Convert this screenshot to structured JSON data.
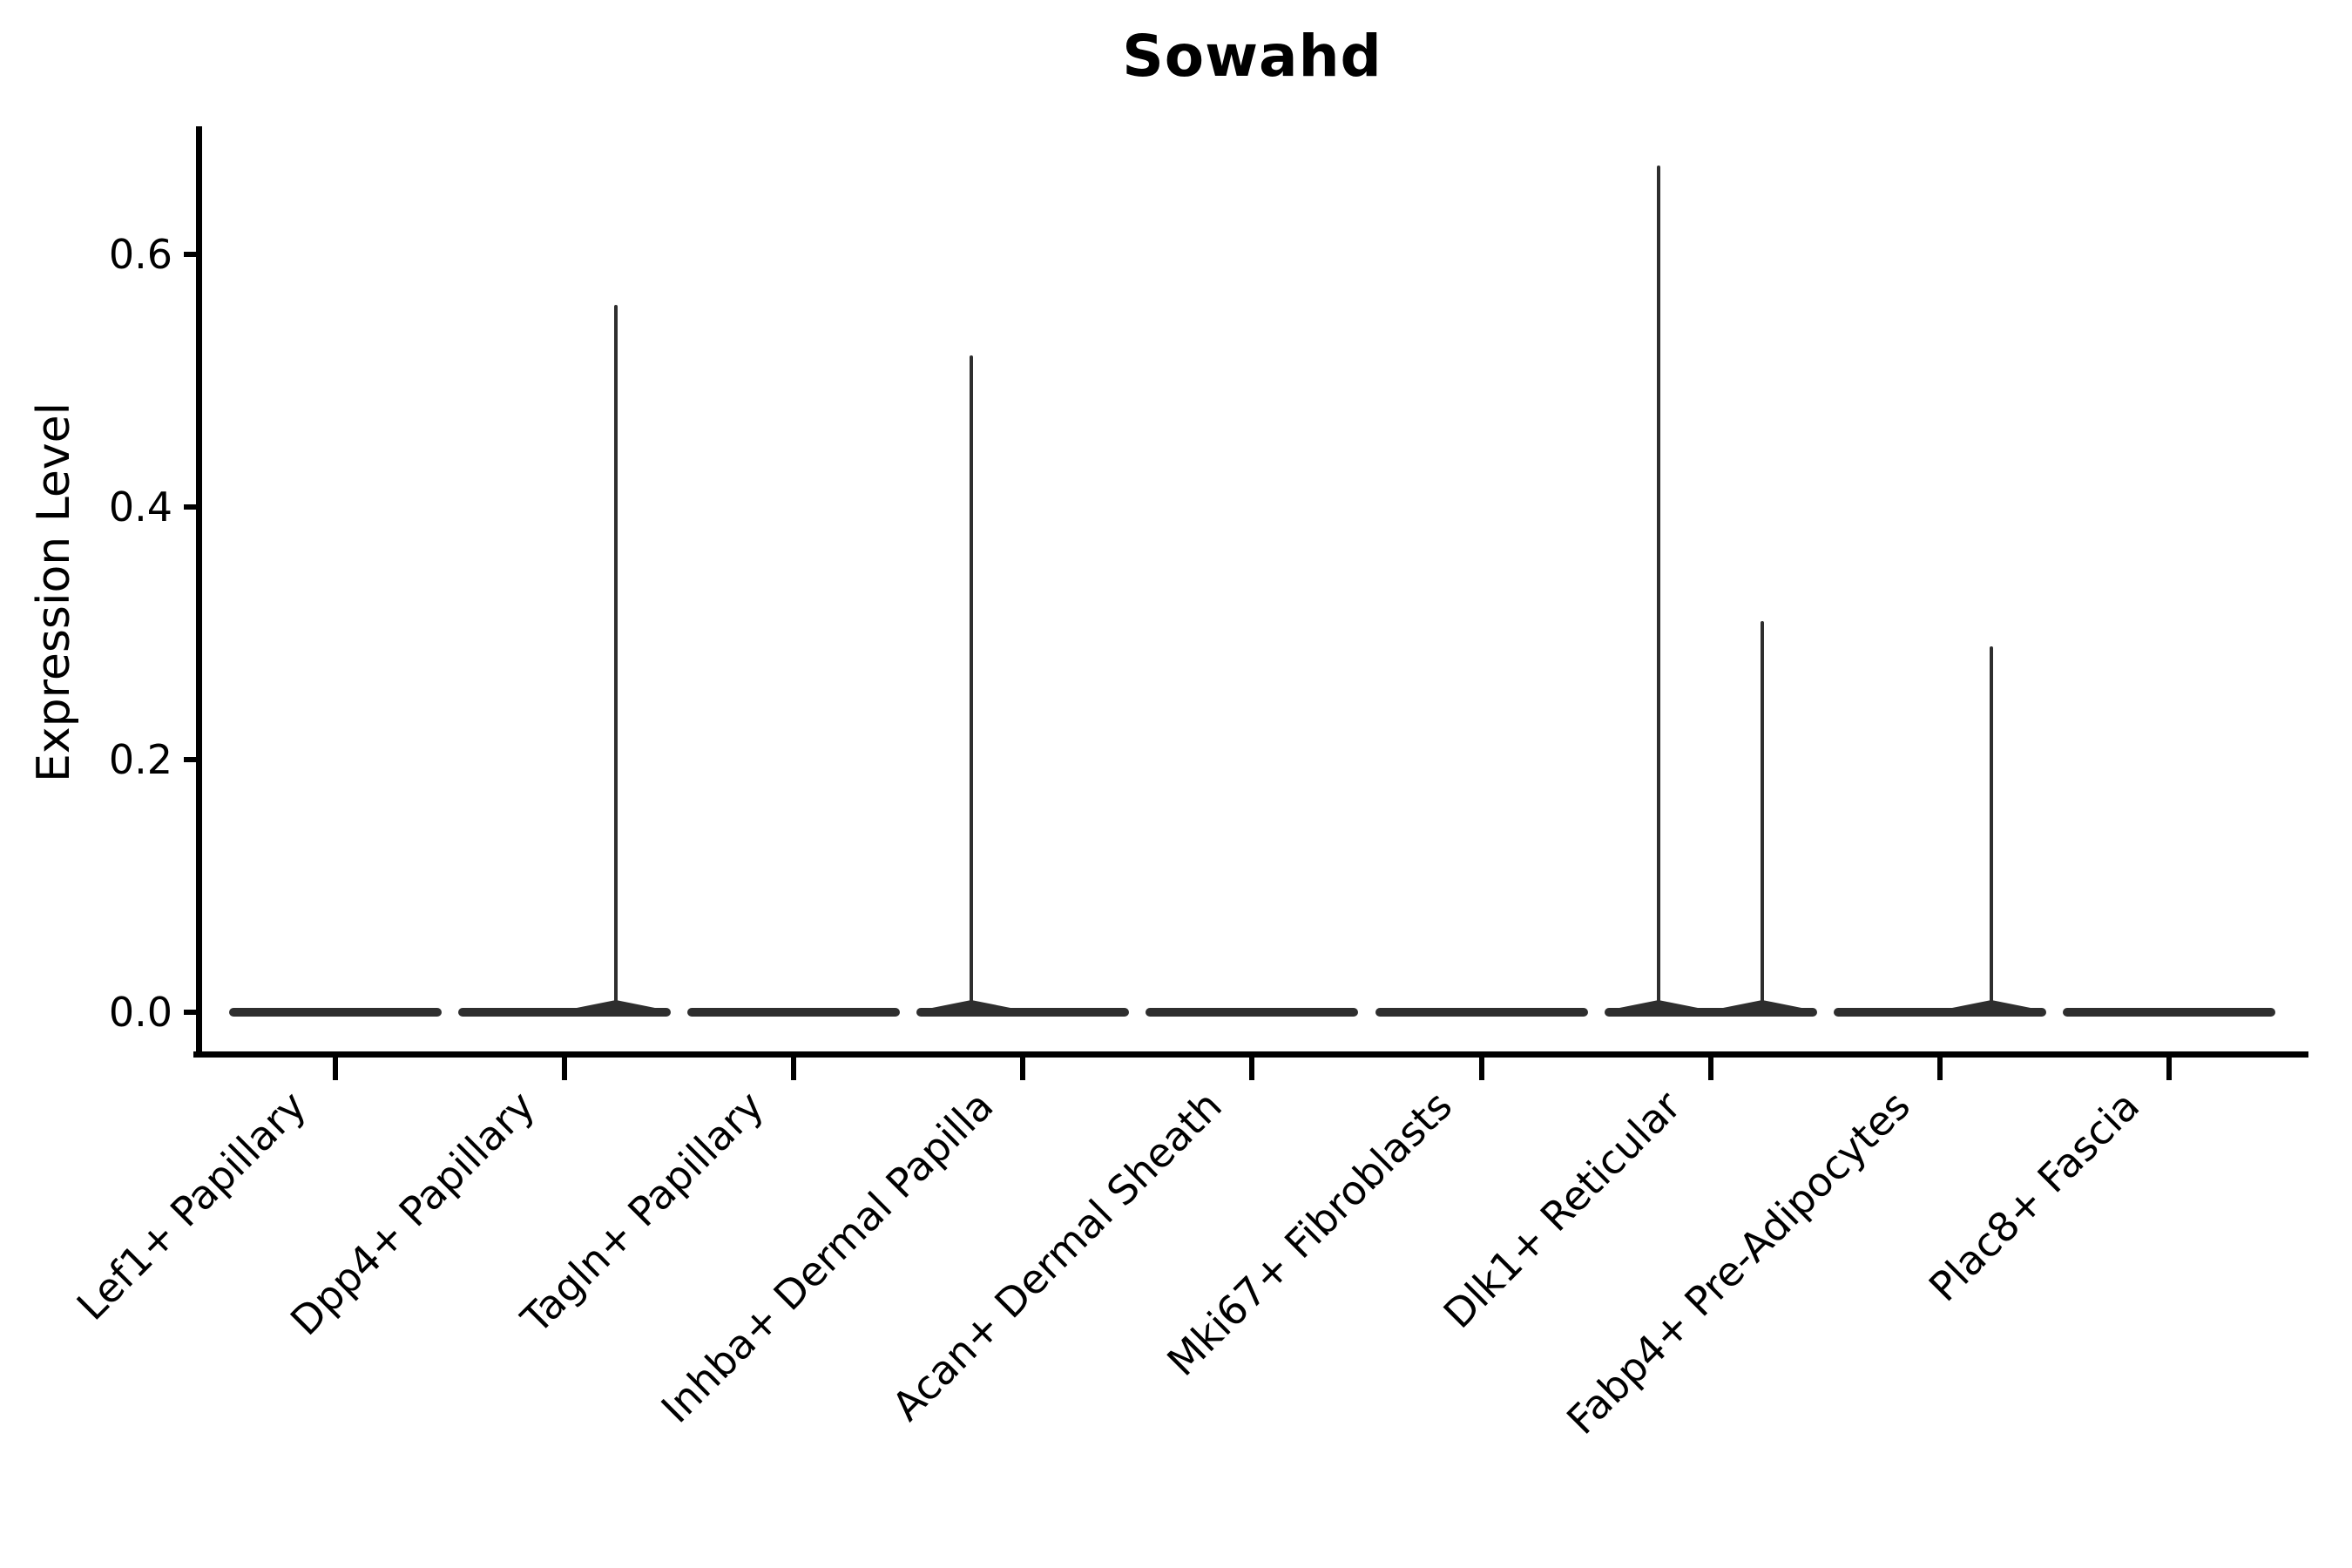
{
  "chart_data": {
    "type": "violin",
    "title": "Sowahd",
    "xlabel": "",
    "ylabel": "Expression Level",
    "ylim": [
      0,
      0.7
    ],
    "grid": false,
    "legend": "none",
    "axis_color": "#000000",
    "violin_color": "#2e2e2e",
    "background_color": "#ffffff",
    "yticks": [
      {
        "value": 0.0,
        "label": "0.0"
      },
      {
        "value": 0.2,
        "label": "0.2"
      },
      {
        "value": 0.4,
        "label": "0.4"
      },
      {
        "value": 0.6,
        "label": "0.6"
      }
    ],
    "categories": [
      "Lef1+ Papillary",
      "Dpp4+ Papillary",
      "Tagln+ Papillary",
      "Inhba+ Dermal Papilla",
      "Acan+ Dermal Sheath",
      "Mki67+ Fibroblasts",
      "Dlk1+ Reticular",
      "Fabp4+ Pre-Adipocytes",
      "Plac8+ Fascia"
    ],
    "violins": [
      {
        "category": "Lef1+ Papillary",
        "body_value": 0.0,
        "spikes": []
      },
      {
        "category": "Dpp4+ Papillary",
        "body_value": 0.0,
        "spikes": [
          {
            "offset_frac": 0.225,
            "value": 0.56
          }
        ]
      },
      {
        "category": "Tagln+ Papillary",
        "body_value": 0.0,
        "spikes": []
      },
      {
        "category": "Inhba+ Dermal Papilla",
        "body_value": 0.0,
        "spikes": [
          {
            "offset_frac": -0.225,
            "value": 0.52
          }
        ]
      },
      {
        "category": "Acan+ Dermal Sheath",
        "body_value": 0.0,
        "spikes": []
      },
      {
        "category": "Mki67+ Fibroblasts",
        "body_value": 0.0,
        "spikes": []
      },
      {
        "category": "Dlk1+ Reticular",
        "body_value": 0.0,
        "spikes": [
          {
            "offset_frac": -0.225,
            "value": 0.67
          },
          {
            "offset_frac": 0.225,
            "value": 0.31
          }
        ]
      },
      {
        "category": "Fabp4+ Pre-Adipocytes",
        "body_value": 0.0,
        "spikes": [
          {
            "offset_frac": 0.225,
            "value": 0.29
          }
        ]
      },
      {
        "category": "Plac8+ Fascia",
        "body_value": 0.0,
        "spikes": []
      }
    ]
  }
}
